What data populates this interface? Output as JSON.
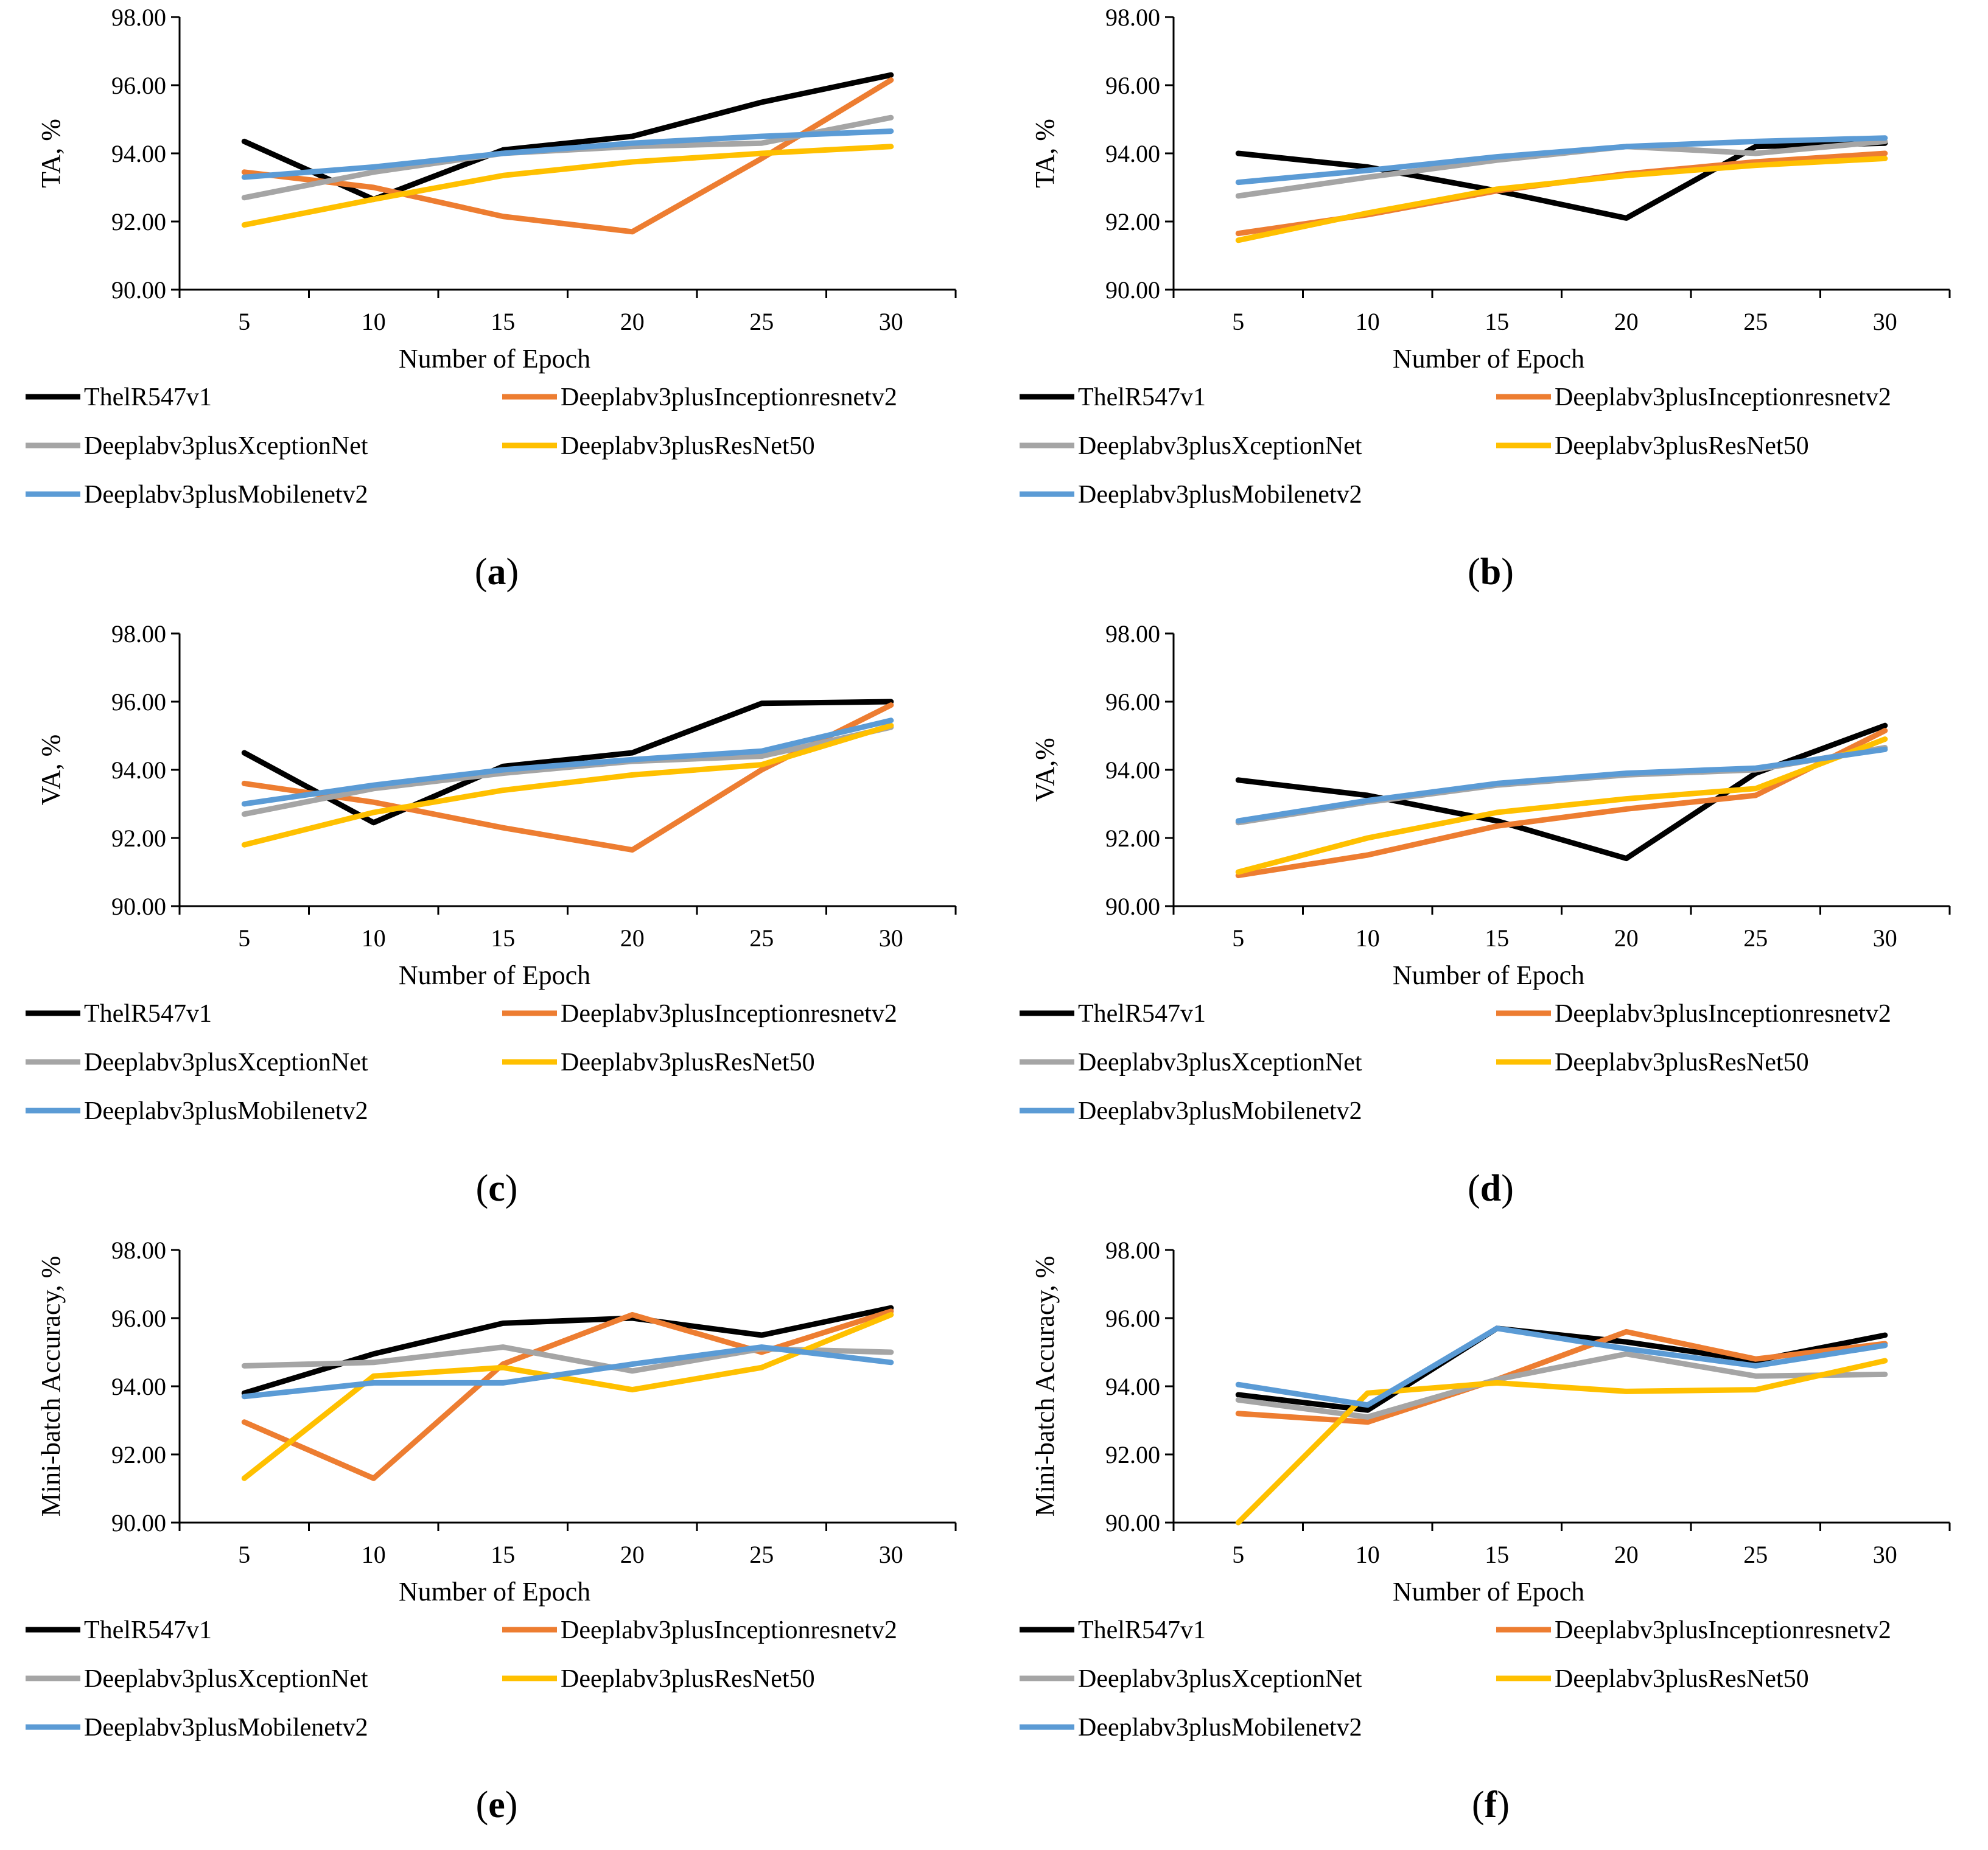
{
  "figure": {
    "legend_labels": [
      "ThelR547v1",
      "Deeplabv3plusInceptionresnetv2",
      "Deeplabv3plusXceptionNet",
      "Deeplabv3plusResNet50",
      "Deeplabv3plusMobilenetv2"
    ],
    "series_colors": [
      "#000000",
      "#ED7D31",
      "#A5A5A5",
      "#FFC000",
      "#5B9BD5"
    ]
  },
  "chart_data": [
    {
      "type": "line",
      "caption": "a",
      "xlabel": "Number of Epoch",
      "ylabel": "TA, %",
      "categories": [
        "5",
        "10",
        "15",
        "20",
        "25",
        "30"
      ],
      "ylim": [
        90,
        98
      ],
      "yticks": [
        "90.00",
        "92.00",
        "94.00",
        "96.00",
        "98.00"
      ],
      "series": [
        {
          "name": "ThelR547v1",
          "values": [
            94.35,
            92.65,
            94.1,
            94.5,
            95.5,
            96.3
          ]
        },
        {
          "name": "Deeplabv3plusInceptionresnetv2",
          "values": [
            93.45,
            93.0,
            92.15,
            91.7,
            93.85,
            96.15
          ]
        },
        {
          "name": "Deeplabv3plusXceptionNet",
          "values": [
            92.7,
            93.45,
            94.0,
            94.2,
            94.3,
            95.05
          ]
        },
        {
          "name": "Deeplabv3plusResNet50",
          "values": [
            91.9,
            92.65,
            93.35,
            93.75,
            94.0,
            94.2
          ]
        },
        {
          "name": "Deeplabv3plusMobilenetv2",
          "values": [
            93.3,
            93.6,
            94.0,
            94.3,
            94.5,
            94.65
          ]
        }
      ]
    },
    {
      "type": "line",
      "caption": "b",
      "xlabel": "Number of Epoch",
      "ylabel": "TA, %",
      "categories": [
        "5",
        "10",
        "15",
        "20",
        "25",
        "30"
      ],
      "ylim": [
        90,
        98
      ],
      "yticks": [
        "90.00",
        "92.00",
        "94.00",
        "96.00",
        "98.00"
      ],
      "series": [
        {
          "name": "ThelR547v1",
          "values": [
            94.0,
            93.6,
            92.9,
            92.1,
            94.2,
            94.3
          ]
        },
        {
          "name": "Deeplabv3plusInceptionresnetv2",
          "values": [
            91.65,
            92.2,
            92.9,
            93.4,
            93.75,
            94.0
          ]
        },
        {
          "name": "Deeplabv3plusXceptionNet",
          "values": [
            92.75,
            93.3,
            93.8,
            94.2,
            94.0,
            94.35
          ]
        },
        {
          "name": "Deeplabv3plusResNet50",
          "values": [
            91.45,
            92.25,
            92.95,
            93.35,
            93.65,
            93.85
          ]
        },
        {
          "name": "Deeplabv3plusMobilenetv2",
          "values": [
            93.15,
            93.5,
            93.9,
            94.2,
            94.35,
            94.45
          ]
        }
      ]
    },
    {
      "type": "line",
      "caption": "c",
      "xlabel": "Number of Epoch",
      "ylabel": "VA, %",
      "categories": [
        "5",
        "10",
        "15",
        "20",
        "25",
        "30"
      ],
      "ylim": [
        90,
        98
      ],
      "yticks": [
        "90.00",
        "92.00",
        "94.00",
        "96.00",
        "98.00"
      ],
      "series": [
        {
          "name": "ThelR547v1",
          "values": [
            94.5,
            92.45,
            94.1,
            94.5,
            95.95,
            96.0
          ]
        },
        {
          "name": "Deeplabv3plusInceptionresnetv2",
          "values": [
            93.6,
            93.05,
            92.3,
            91.65,
            94.0,
            95.9
          ]
        },
        {
          "name": "Deeplabv3plusXceptionNet",
          "values": [
            92.7,
            93.45,
            93.9,
            94.25,
            94.4,
            95.25
          ]
        },
        {
          "name": "Deeplabv3plusResNet50",
          "values": [
            91.8,
            92.75,
            93.4,
            93.85,
            94.15,
            95.3
          ]
        },
        {
          "name": "Deeplabv3plusMobilenetv2",
          "values": [
            93.0,
            93.55,
            94.0,
            94.3,
            94.55,
            95.45
          ]
        }
      ]
    },
    {
      "type": "line",
      "caption": "d",
      "xlabel": "Number of Epoch",
      "ylabel": "VA,%",
      "categories": [
        "5",
        "10",
        "15",
        "20",
        "25",
        "30"
      ],
      "ylim": [
        90,
        98
      ],
      "yticks": [
        "90.00",
        "92.00",
        "94.00",
        "96.00",
        "98.00"
      ],
      "series": [
        {
          "name": "ThelR547v1",
          "values": [
            93.7,
            93.25,
            92.5,
            91.4,
            93.9,
            95.3
          ]
        },
        {
          "name": "Deeplabv3plusInceptionresnetv2",
          "values": [
            90.9,
            91.5,
            92.35,
            92.85,
            93.25,
            95.15
          ]
        },
        {
          "name": "Deeplabv3plusXceptionNet",
          "values": [
            92.45,
            93.05,
            93.55,
            93.85,
            94.0,
            94.65
          ]
        },
        {
          "name": "Deeplabv3plusResNet50",
          "values": [
            91.0,
            92.0,
            92.75,
            93.15,
            93.45,
            94.9
          ]
        },
        {
          "name": "Deeplabv3plusMobilenetv2",
          "values": [
            92.5,
            93.1,
            93.6,
            93.9,
            94.05,
            94.6
          ]
        }
      ]
    },
    {
      "type": "line",
      "caption": "e",
      "xlabel": "Number of Epoch",
      "ylabel": "Mini-batch Accuracy, %",
      "categories": [
        "5",
        "10",
        "15",
        "20",
        "25",
        "30"
      ],
      "ylim": [
        90,
        98
      ],
      "yticks": [
        "90.00",
        "92.00",
        "94.00",
        "96.00",
        "98.00"
      ],
      "series": [
        {
          "name": "ThelR547v1",
          "values": [
            93.8,
            94.95,
            95.85,
            96.0,
            95.5,
            96.3
          ]
        },
        {
          "name": "Deeplabv3plusInceptionresnetv2",
          "values": [
            92.95,
            91.3,
            94.65,
            96.1,
            95.0,
            96.2
          ]
        },
        {
          "name": "Deeplabv3plusXceptionNet",
          "values": [
            94.6,
            94.7,
            95.15,
            94.45,
            95.1,
            95.0
          ]
        },
        {
          "name": "Deeplabv3plusResNet50",
          "values": [
            91.3,
            94.3,
            94.55,
            93.9,
            94.55,
            96.1
          ]
        },
        {
          "name": "Deeplabv3plusMobilenetv2",
          "values": [
            93.7,
            94.1,
            94.1,
            94.65,
            95.15,
            94.7
          ]
        }
      ]
    },
    {
      "type": "line",
      "caption": "f",
      "xlabel": "Number of Epoch",
      "ylabel": "Mini-batch Accuracy, %",
      "categories": [
        "5",
        "10",
        "15",
        "20",
        "25",
        "30"
      ],
      "ylim": [
        90,
        98
      ],
      "yticks": [
        "90.00",
        "92.00",
        "94.00",
        "96.00",
        "98.00"
      ],
      "series": [
        {
          "name": "ThelR547v1",
          "values": [
            93.75,
            93.3,
            95.7,
            95.3,
            94.75,
            95.5
          ]
        },
        {
          "name": "Deeplabv3plusInceptionresnetv2",
          "values": [
            93.2,
            92.95,
            94.2,
            95.6,
            94.8,
            95.25
          ]
        },
        {
          "name": "Deeplabv3plusXceptionNet",
          "values": [
            93.6,
            93.1,
            94.2,
            94.95,
            94.3,
            94.35
          ]
        },
        {
          "name": "Deeplabv3plusResNet50",
          "values": [
            90.0,
            93.8,
            94.1,
            93.85,
            93.9,
            94.75
          ]
        },
        {
          "name": "Deeplabv3plusMobilenetv2",
          "values": [
            94.05,
            93.45,
            95.7,
            95.1,
            94.6,
            95.2
          ]
        }
      ]
    }
  ]
}
